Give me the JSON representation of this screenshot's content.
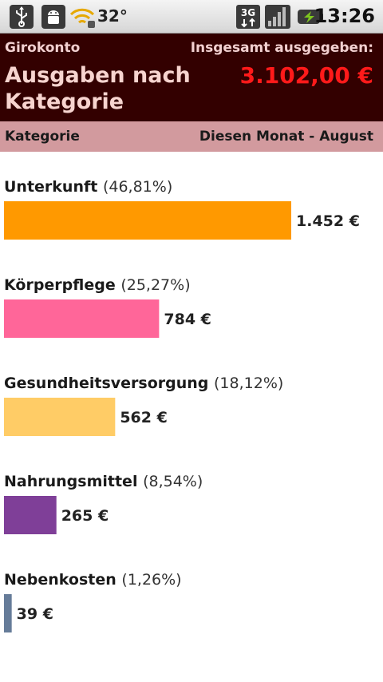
{
  "status_bar": {
    "temperature": "32°",
    "network": "3G",
    "time": "13:26",
    "icons": [
      "usb-icon",
      "android-icon",
      "wifi-icon",
      "3g-icon",
      "signal-icon",
      "battery-icon"
    ]
  },
  "header": {
    "account_label": "Girokonto",
    "title": "Ausgaben nach Kategorie",
    "total_label": "Insgesamt ausgegeben:",
    "total_value": "3.102,00 €"
  },
  "columns": {
    "left": "Kategorie",
    "right": "Diesen Monat - August"
  },
  "chart_data": {
    "type": "bar",
    "orientation": "horizontal",
    "categories": [
      "Unterkunft",
      "Körperpflege",
      "Gesundheitsversorgung",
      "Nahrungsmittel",
      "Nebenkosten"
    ],
    "percents": [
      "(46,81%)",
      "(25,27%)",
      "(18,12%)",
      "(8,54%)",
      "(1,26%)"
    ],
    "values": [
      1452,
      784,
      562,
      265,
      39
    ],
    "value_labels": [
      "1.452 €",
      "784 €",
      "562 €",
      "265 €",
      "39 €"
    ],
    "colors": [
      "#ff9900",
      "#ff6699",
      "#ffcc66",
      "#7f3f98",
      "#667c99"
    ],
    "max_value": 1452
  }
}
